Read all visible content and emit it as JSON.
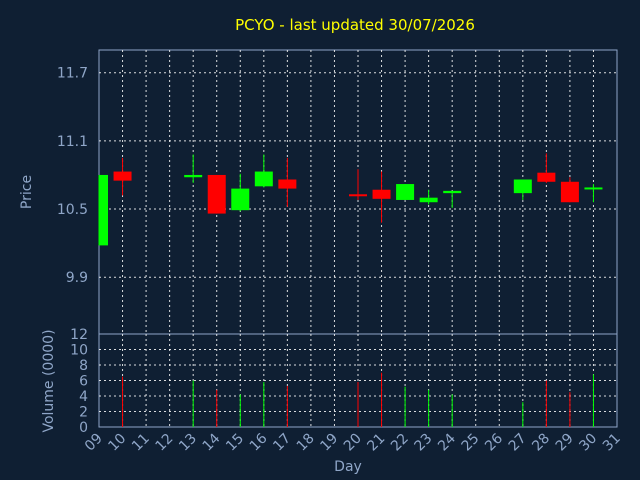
{
  "chart_data": {
    "type": "candlestick",
    "title": "PCYO - last updated 30/07/2026",
    "xlabel": "Day",
    "ylabel_price": "Price",
    "ylabel_volume": "Volume (0000)",
    "x_ticks": [
      "09",
      "10",
      "11",
      "12",
      "13",
      "14",
      "15",
      "16",
      "17",
      "18",
      "19",
      "20",
      "21",
      "22",
      "23",
      "24",
      "25",
      "26",
      "27",
      "28",
      "29",
      "30",
      "31"
    ],
    "price_ylim": [
      9.4,
      11.9
    ],
    "price_ticks": [
      "9.9",
      "10.5",
      "11.1",
      "11.7"
    ],
    "volume_ylim": [
      0,
      12
    ],
    "volume_ticks": [
      "0",
      "2",
      "4",
      "6",
      "8",
      "10",
      "12"
    ],
    "colors": {
      "up": "#00ff00",
      "down": "#ff0000",
      "title": "#ffff00",
      "axis": "#8fa6c8",
      "background": "#0f1f33"
    },
    "candles": [
      {
        "day": 9,
        "open": 10.18,
        "high": 10.8,
        "low": 10.18,
        "close": 10.8,
        "volume": 0
      },
      {
        "day": 10,
        "open": 10.83,
        "high": 10.95,
        "low": 10.62,
        "close": 10.75,
        "volume": 6.5
      },
      {
        "day": 13,
        "open": 10.78,
        "high": 10.98,
        "low": 10.73,
        "close": 10.8,
        "volume": 6.0
      },
      {
        "day": 14,
        "open": 10.8,
        "high": 10.8,
        "low": 10.46,
        "close": 10.46,
        "volume": 4.8
      },
      {
        "day": 15,
        "open": 10.49,
        "high": 10.81,
        "low": 10.48,
        "close": 10.68,
        "volume": 4.2
      },
      {
        "day": 16,
        "open": 10.7,
        "high": 10.98,
        "low": 10.69,
        "close": 10.83,
        "volume": 5.8
      },
      {
        "day": 17,
        "open": 10.76,
        "high": 10.95,
        "low": 10.52,
        "close": 10.68,
        "volume": 5.3
      },
      {
        "day": 20,
        "open": 10.63,
        "high": 10.85,
        "low": 10.58,
        "close": 10.62,
        "volume": 5.8
      },
      {
        "day": 21,
        "open": 10.67,
        "high": 10.83,
        "low": 10.38,
        "close": 10.59,
        "volume": 7.0
      },
      {
        "day": 22,
        "open": 10.58,
        "high": 10.72,
        "low": 10.58,
        "close": 10.72,
        "volume": 5.2
      },
      {
        "day": 23,
        "open": 10.56,
        "high": 10.67,
        "low": 10.54,
        "close": 10.6,
        "volume": 4.8
      },
      {
        "day": 24,
        "open": 10.64,
        "high": 10.66,
        "low": 10.51,
        "close": 10.66,
        "volume": 4.2
      },
      {
        "day": 27,
        "open": 10.64,
        "high": 10.76,
        "low": 10.58,
        "close": 10.76,
        "volume": 3.2
      },
      {
        "day": 28,
        "open": 10.82,
        "high": 10.99,
        "low": 10.73,
        "close": 10.74,
        "volume": 6.0
      },
      {
        "day": 29,
        "open": 10.74,
        "high": 10.78,
        "low": 10.56,
        "close": 10.56,
        "volume": 4.5
      },
      {
        "day": 30,
        "open": 10.68,
        "high": 10.72,
        "low": 10.56,
        "close": 10.69,
        "volume": 6.8
      }
    ]
  }
}
